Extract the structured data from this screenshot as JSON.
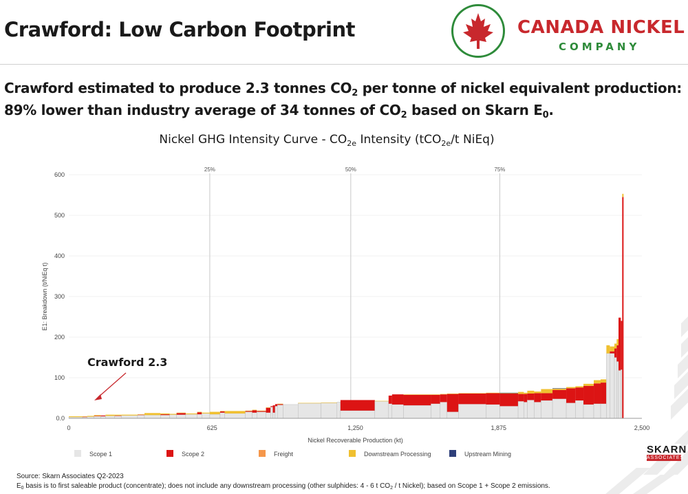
{
  "slide": {
    "title": "Crawford:  Low Carbon Footprint",
    "headline_line1_a": "Crawford estimated to produce 2.3 tonnes CO",
    "headline_line1_sub": "2",
    "headline_line1_b": " per tonne of nickel equivalent production:",
    "headline_line2_a": "89% lower than industry average of 34 tonnes of CO",
    "headline_line2_sub": "2",
    "headline_line2_b": " based on Skarn E",
    "headline_line2_sub2": "0",
    "headline_line2_c": "."
  },
  "logo": {
    "company": "CANADA NICKEL",
    "sub": "COMPANY",
    "icon": "maple-leaf-icon"
  },
  "chart_title": {
    "a": "Nickel GHG Intensity Curve - CO",
    "sub1": "2e",
    "b": " Intensity (tCO",
    "sub2": "2e",
    "c": "/t NiEq)"
  },
  "footer": {
    "source": "Source: Skarn Associates Q2-2023",
    "basis_a": "E",
    "basis_sub": "0",
    "basis_b": " basis is to first saleable product (concentrate); does not include any downstream processing (other sulphides: 4 - 6 t CO",
    "basis_sub2": "2",
    "basis_c": " / t Nickel); based on Scope 1 + Scope 2 emissions."
  },
  "skarn": {
    "name": "SKARN",
    "sub": "ASSOCIATES"
  },
  "colors": {
    "scope1": "#e6e6e6",
    "scope2": "#dc1414",
    "freight": "#f5974b",
    "downstream": "#f0c030",
    "upstream": "#2e3f7a",
    "brand_red": "#c8282d",
    "brand_green": "#2e8b3a"
  },
  "chart_data": {
    "type": "area",
    "xlabel": "Nickel Recoverable Production (kt)",
    "ylabel": "E1: Breakdown (t/NiEq t)",
    "xlim": [
      0,
      2500
    ],
    "ylim": [
      0,
      600
    ],
    "x_ticks": [
      "0",
      "625",
      "1,250",
      "1,875",
      "2,500"
    ],
    "x_tick_values": [
      0,
      625,
      1250,
      1875,
      2500
    ],
    "y_ticks": [
      "0.0",
      "100",
      "200",
      "300",
      "400",
      "500",
      "600"
    ],
    "y_tick_values": [
      0,
      100,
      200,
      300,
      400,
      500,
      600
    ],
    "percentile_lines": [
      {
        "label": "25%",
        "x": 615
      },
      {
        "label": "50%",
        "x": 1230
      },
      {
        "label": "75%",
        "x": 1880
      }
    ],
    "legend_position": "bottom",
    "series_names": [
      "Scope 1",
      "Scope 2",
      "Freight",
      "Downstream Processing",
      "Upstream Mining"
    ],
    "annotation": {
      "text": "Crawford 2.3",
      "x": 110,
      "y": 2.3
    },
    "bars": [
      {
        "x0": 0,
        "x1": 60,
        "scope1": 3,
        "scope2": 0,
        "freight": 0,
        "downstream": 2,
        "upstream": 0
      },
      {
        "x0": 60,
        "x1": 80,
        "scope1": 3,
        "scope2": 1,
        "freight": 0,
        "downstream": 1,
        "upstream": 0
      },
      {
        "x0": 80,
        "x1": 110,
        "scope1": 4,
        "scope2": 0,
        "freight": 0,
        "downstream": 2,
        "upstream": 0
      },
      {
        "x0": 110,
        "x1": 140,
        "scope1": 5,
        "scope2": 1,
        "freight": 0,
        "downstream": 2,
        "upstream": 0
      },
      {
        "x0": 140,
        "x1": 160,
        "scope1": 5,
        "scope2": 2,
        "freight": 0,
        "downstream": 0,
        "upstream": 0
      },
      {
        "x0": 160,
        "x1": 200,
        "scope1": 6,
        "scope2": 0,
        "freight": 0,
        "downstream": 3,
        "upstream": 0
      },
      {
        "x0": 200,
        "x1": 230,
        "scope1": 6,
        "scope2": 1,
        "freight": 0,
        "downstream": 2,
        "upstream": 0
      },
      {
        "x0": 230,
        "x1": 300,
        "scope1": 7,
        "scope2": 0,
        "freight": 0,
        "downstream": 2,
        "upstream": 0
      },
      {
        "x0": 300,
        "x1": 330,
        "scope1": 8,
        "scope2": 1,
        "freight": 0,
        "downstream": 1,
        "upstream": 0
      },
      {
        "x0": 330,
        "x1": 400,
        "scope1": 8,
        "scope2": 0,
        "freight": 0,
        "downstream": 5,
        "upstream": 0
      },
      {
        "x0": 400,
        "x1": 440,
        "scope1": 8,
        "scope2": 2,
        "freight": 0,
        "downstream": 2,
        "upstream": 0
      },
      {
        "x0": 440,
        "x1": 470,
        "scope1": 9,
        "scope2": 0,
        "freight": 0,
        "downstream": 2,
        "upstream": 0
      },
      {
        "x0": 470,
        "x1": 510,
        "scope1": 9,
        "scope2": 4,
        "freight": 0,
        "downstream": 1,
        "upstream": 0
      },
      {
        "x0": 510,
        "x1": 560,
        "scope1": 10,
        "scope2": 0,
        "freight": 0,
        "downstream": 2,
        "upstream": 0
      },
      {
        "x0": 560,
        "x1": 580,
        "scope1": 10,
        "scope2": 5,
        "freight": 0,
        "downstream": 1,
        "upstream": 0
      },
      {
        "x0": 580,
        "x1": 615,
        "scope1": 12,
        "scope2": 0,
        "freight": 0,
        "downstream": 2,
        "upstream": 0
      },
      {
        "x0": 615,
        "x1": 660,
        "scope1": 10,
        "scope2": 0,
        "freight": 0,
        "downstream": 6,
        "upstream": 0
      },
      {
        "x0": 660,
        "x1": 680,
        "scope1": 14,
        "scope2": 3,
        "freight": 0,
        "downstream": 1,
        "upstream": 0
      },
      {
        "x0": 680,
        "x1": 770,
        "scope1": 12,
        "scope2": 0,
        "freight": 0,
        "downstream": 6,
        "upstream": 0
      },
      {
        "x0": 770,
        "x1": 800,
        "scope1": 16,
        "scope2": 2,
        "freight": 0,
        "downstream": 1,
        "upstream": 0
      },
      {
        "x0": 800,
        "x1": 820,
        "scope1": 14,
        "scope2": 6,
        "freight": 0,
        "downstream": 1,
        "upstream": 0
      },
      {
        "x0": 820,
        "x1": 860,
        "scope1": 16,
        "scope2": 2,
        "freight": 0,
        "downstream": 1,
        "upstream": 0
      },
      {
        "x0": 860,
        "x1": 880,
        "scope1": 14,
        "scope2": 12,
        "freight": 0,
        "downstream": 1,
        "upstream": 0
      },
      {
        "x0": 880,
        "x1": 890,
        "scope1": 28,
        "scope2": 2,
        "freight": 0,
        "downstream": 0,
        "upstream": 0
      },
      {
        "x0": 890,
        "x1": 900,
        "scope1": 14,
        "scope2": 18,
        "freight": 0,
        "downstream": 0,
        "upstream": 0
      },
      {
        "x0": 900,
        "x1": 910,
        "scope1": 30,
        "scope2": 5,
        "freight": 0,
        "downstream": 0,
        "upstream": 0
      },
      {
        "x0": 910,
        "x1": 935,
        "scope1": 33,
        "scope2": 2,
        "freight": 0,
        "downstream": 1,
        "upstream": 0
      },
      {
        "x0": 935,
        "x1": 1000,
        "scope1": 34,
        "scope2": 0,
        "freight": 0,
        "downstream": 0,
        "upstream": 0
      },
      {
        "x0": 1000,
        "x1": 1100,
        "scope1": 37,
        "scope2": 0,
        "freight": 0,
        "downstream": 1,
        "upstream": 0
      },
      {
        "x0": 1100,
        "x1": 1170,
        "scope1": 38,
        "scope2": 0,
        "freight": 0,
        "downstream": 1,
        "upstream": 0
      },
      {
        "x0": 1170,
        "x1": 1185,
        "scope1": 40,
        "scope2": 0,
        "freight": 0,
        "downstream": 0,
        "upstream": 0
      },
      {
        "x0": 1185,
        "x1": 1335,
        "scope1": 19,
        "scope2": 26,
        "freight": 0,
        "downstream": 0,
        "upstream": 0
      },
      {
        "x0": 1335,
        "x1": 1395,
        "scope1": 42,
        "scope2": 0,
        "freight": 0,
        "downstream": 1,
        "upstream": 0
      },
      {
        "x0": 1395,
        "x1": 1410,
        "scope1": 36,
        "scope2": 20,
        "freight": 0,
        "downstream": 0,
        "upstream": 0
      },
      {
        "x0": 1410,
        "x1": 1460,
        "scope1": 34,
        "scope2": 25,
        "freight": 0,
        "downstream": 0,
        "upstream": 0
      },
      {
        "x0": 1460,
        "x1": 1580,
        "scope1": 32,
        "scope2": 26,
        "freight": 0,
        "downstream": 1,
        "upstream": 0
      },
      {
        "x0": 1580,
        "x1": 1620,
        "scope1": 36,
        "scope2": 22,
        "freight": 0,
        "downstream": 1,
        "upstream": 0
      },
      {
        "x0": 1620,
        "x1": 1650,
        "scope1": 40,
        "scope2": 19,
        "freight": 0,
        "downstream": 1,
        "upstream": 0
      },
      {
        "x0": 1650,
        "x1": 1700,
        "scope1": 16,
        "scope2": 44,
        "freight": 0,
        "downstream": 1,
        "upstream": 0
      },
      {
        "x0": 1700,
        "x1": 1820,
        "scope1": 35,
        "scope2": 26,
        "freight": 0,
        "downstream": 1,
        "upstream": 0
      },
      {
        "x0": 1820,
        "x1": 1880,
        "scope1": 34,
        "scope2": 28,
        "freight": 0,
        "downstream": 1,
        "upstream": 0
      },
      {
        "x0": 1880,
        "x1": 1960,
        "scope1": 30,
        "scope2": 31,
        "freight": 0,
        "downstream": 1,
        "upstream": 1
      },
      {
        "x0": 1960,
        "x1": 1985,
        "scope1": 42,
        "scope2": 18,
        "freight": 0,
        "downstream": 5,
        "upstream": 0
      },
      {
        "x0": 1985,
        "x1": 2000,
        "scope1": 40,
        "scope2": 20,
        "freight": 0,
        "downstream": 3,
        "upstream": 0
      },
      {
        "x0": 2000,
        "x1": 2030,
        "scope1": 45,
        "scope2": 16,
        "freight": 0,
        "downstream": 7,
        "upstream": 0
      },
      {
        "x0": 2030,
        "x1": 2060,
        "scope1": 40,
        "scope2": 22,
        "freight": 0,
        "downstream": 4,
        "upstream": 0
      },
      {
        "x0": 2060,
        "x1": 2110,
        "scope1": 44,
        "scope2": 18,
        "freight": 0,
        "downstream": 10,
        "upstream": 0
      },
      {
        "x0": 2110,
        "x1": 2170,
        "scope1": 48,
        "scope2": 22,
        "freight": 0,
        "downstream": 3,
        "upstream": 1
      },
      {
        "x0": 2170,
        "x1": 2210,
        "scope1": 38,
        "scope2": 36,
        "freight": 0,
        "downstream": 3,
        "upstream": 0
      },
      {
        "x0": 2210,
        "x1": 2245,
        "scope1": 44,
        "scope2": 32,
        "freight": 0,
        "downstream": 3,
        "upstream": 0
      },
      {
        "x0": 2245,
        "x1": 2290,
        "scope1": 34,
        "scope2": 46,
        "freight": 0,
        "downstream": 5,
        "upstream": 0
      },
      {
        "x0": 2290,
        "x1": 2320,
        "scope1": 36,
        "scope2": 50,
        "freight": 0,
        "downstream": 8,
        "upstream": 0
      },
      {
        "x0": 2320,
        "x1": 2345,
        "scope1": 36,
        "scope2": 52,
        "freight": 0,
        "downstream": 8,
        "upstream": 0
      },
      {
        "x0": 2345,
        "x1": 2360,
        "scope1": 160,
        "scope2": 0,
        "freight": 0,
        "downstream": 20,
        "upstream": 0
      },
      {
        "x0": 2360,
        "x1": 2380,
        "scope1": 160,
        "scope2": 5,
        "freight": 0,
        "downstream": 12,
        "upstream": 0
      },
      {
        "x0": 2380,
        "x1": 2390,
        "scope1": 150,
        "scope2": 22,
        "freight": 0,
        "downstream": 12,
        "upstream": 0
      },
      {
        "x0": 2390,
        "x1": 2398,
        "scope1": 140,
        "scope2": 40,
        "freight": 0,
        "downstream": 15,
        "upstream": 0
      },
      {
        "x0": 2398,
        "x1": 2408,
        "scope1": 118,
        "scope2": 130,
        "freight": 0,
        "downstream": 0,
        "upstream": 0
      },
      {
        "x0": 2408,
        "x1": 2414,
        "scope1": 120,
        "scope2": 120,
        "freight": 0,
        "downstream": 0,
        "upstream": 0
      },
      {
        "x0": 2414,
        "x1": 2420,
        "scope1": 0,
        "scope2": 545,
        "freight": 0,
        "downstream": 8,
        "upstream": 0
      }
    ]
  }
}
